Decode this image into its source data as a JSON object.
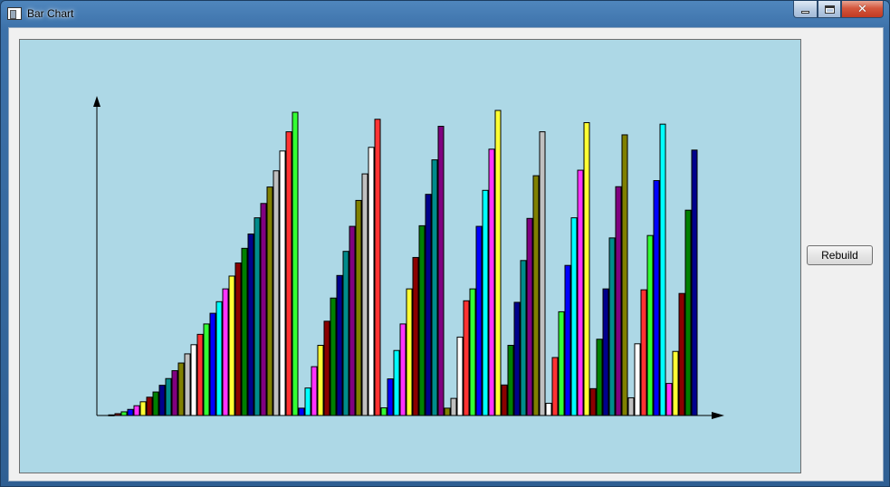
{
  "window": {
    "title": "Bar Chart"
  },
  "buttons": {
    "rebuild_label": "Rebuild"
  },
  "colors": {
    "plot_background": "#add8e6",
    "bar_cycle": [
      "#00008b",
      "#ff3333",
      "#33ff33",
      "#0000ff",
      "#ff33ff",
      "#ffff33",
      "#8b0000",
      "#008000",
      "#000080",
      "#008b8b",
      "#800080",
      "#808000",
      "#c0c0c0",
      "#ffffff",
      "#ff3333",
      "#00ffff",
      "#2d5bff",
      "#33ff33",
      "#0000aa",
      "#ff4444",
      "#33ff33",
      "#ffffff",
      "#808000",
      "#cccccc"
    ]
  },
  "chart_data": {
    "type": "bar",
    "title": "",
    "xlabel": "",
    "ylabel": "",
    "grid": false,
    "legend": "none",
    "ylim": [
      0,
      100
    ],
    "series": [
      {
        "colors": [
          "#00008b",
          "#8b0000",
          "#33ff33",
          "#0000ff",
          "#ff33ff",
          "#ffff33",
          "#8b0000",
          "#008000",
          "#00008b",
          "#008b8b",
          "#800080",
          "#808000",
          "#c0c0c0",
          "#ffffff",
          "#ff3333",
          "#33ff33",
          "#0000ff",
          "#00ffff",
          "#ff33ff",
          "#ffff33",
          "#8b0000",
          "#008000",
          "#00008b",
          "#008b8b",
          "#800080",
          "#808000",
          "#c0c0c0",
          "#ffffff",
          "#ff3333",
          "#33ff33"
        ],
        "values": [
          0.2,
          0.6,
          1.2,
          2.0,
          3.2,
          4.5,
          6.0,
          7.7,
          9.9,
          12.1,
          14.7,
          17.2,
          20.2,
          23.2,
          26.6,
          30.0,
          33.5,
          37.3,
          41.5,
          45.7,
          50.0,
          54.8,
          59.5,
          64.8,
          69.5,
          74.9,
          80.2,
          86.7,
          93.0,
          99.4
        ]
      },
      {
        "colors": [
          "#0000ff",
          "#00ffff",
          "#ff33ff",
          "#ffff33",
          "#8b0000",
          "#008000",
          "#00008b",
          "#008b8b",
          "#800080",
          "#808000",
          "#c0c0c0",
          "#ffffff",
          "#ff3333"
        ],
        "values": [
          2.4,
          9.0,
          16.0,
          23.0,
          30.9,
          38.5,
          45.9,
          53.8,
          62.0,
          70.5,
          79.2,
          87.9,
          97.1
        ]
      },
      {
        "colors": [
          "#33ff33",
          "#0000ff",
          "#00ffff",
          "#ff33ff",
          "#ffff33",
          "#8b0000",
          "#008000",
          "#00008b",
          "#008b8b",
          "#800080"
        ],
        "values": [
          2.5,
          12.0,
          21.3,
          30.0,
          41.5,
          51.8,
          62.2,
          72.5,
          83.8,
          94.8
        ]
      },
      {
        "colors": [
          "#808000",
          "#c0c0c0",
          "#ffffff",
          "#ff3333",
          "#33ff33",
          "#0000ff",
          "#00ffff",
          "#ff33ff",
          "#ffff33"
        ],
        "values": [
          2.4,
          5.6,
          25.7,
          37.6,
          41.5,
          62.0,
          73.8,
          87.3,
          100.0
        ]
      },
      {
        "colors": [
          "#8b0000",
          "#008000",
          "#00008b",
          "#008b8b",
          "#800080",
          "#808000",
          "#c0c0c0",
          "#ffffff"
        ],
        "values": [
          10.0,
          23.0,
          37.1,
          50.8,
          64.6,
          78.6,
          93.0,
          4.0
        ]
      },
      {
        "colors": [
          "#ff3333",
          "#33ff33",
          "#0000ff",
          "#00ffff",
          "#ff33ff",
          "#ffff33"
        ],
        "values": [
          19.0,
          34.0,
          49.2,
          64.8,
          80.4,
          96.0
        ]
      },
      {
        "colors": [
          "#8b0000",
          "#008000",
          "#00008b",
          "#008b8b",
          "#800080",
          "#808000"
        ],
        "values": [
          8.8,
          25.0,
          41.5,
          58.2,
          75.0,
          92.0
        ]
      },
      {
        "colors": [
          "#c0c0c0",
          "#ffffff",
          "#ff3333",
          "#33ff33",
          "#0000ff",
          "#00ffff"
        ],
        "values": [
          5.8,
          23.5,
          41.2,
          59.0,
          77.0,
          95.5
        ]
      },
      {
        "colors": [
          "#ff33ff",
          "#ffff33",
          "#8b0000",
          "#008000",
          "#00008b"
        ],
        "values": [
          10.5,
          21.0,
          40.0,
          67.3,
          87.0
        ]
      }
    ],
    "axes": {
      "x_arrow": true,
      "y_arrow": true
    }
  }
}
